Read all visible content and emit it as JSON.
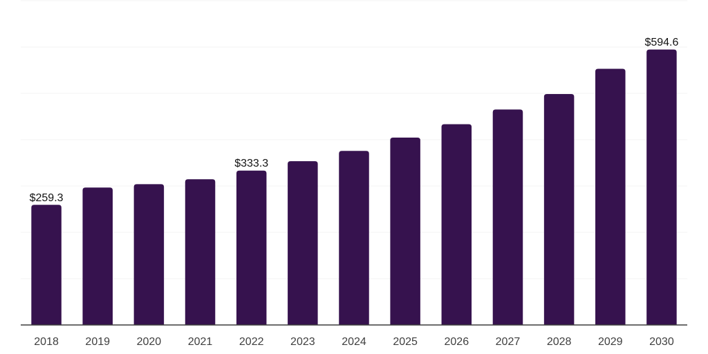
{
  "chart": {
    "background": "#ffffff",
    "bar_color": "#36124e",
    "grid_color": "#f3f3f3",
    "axis_color": "#3c3c3c",
    "tick_label_color": "#3f3f3f",
    "data_label_color": "#121212"
  },
  "chart_data": {
    "type": "bar",
    "title": "",
    "xlabel": "",
    "ylabel": "",
    "categories": [
      "2018",
      "2019",
      "2020",
      "2021",
      "2022",
      "2023",
      "2024",
      "2025",
      "2026",
      "2027",
      "2028",
      "2029",
      "2030"
    ],
    "values": [
      259.3,
      296.6,
      304.0,
      314.5,
      333.3,
      353.5,
      375.7,
      404.5,
      433.4,
      465.2,
      498.5,
      553.0,
      594.6
    ],
    "data_labels": [
      "$259.3",
      null,
      null,
      null,
      "$333.3",
      null,
      null,
      null,
      null,
      null,
      null,
      null,
      "$594.6"
    ],
    "currency_prefix": "$",
    "ylim": [
      0,
      700
    ],
    "grid_step": 100,
    "grid": "horizontal-only",
    "legend": "none",
    "y_axis_labels_visible": false
  }
}
